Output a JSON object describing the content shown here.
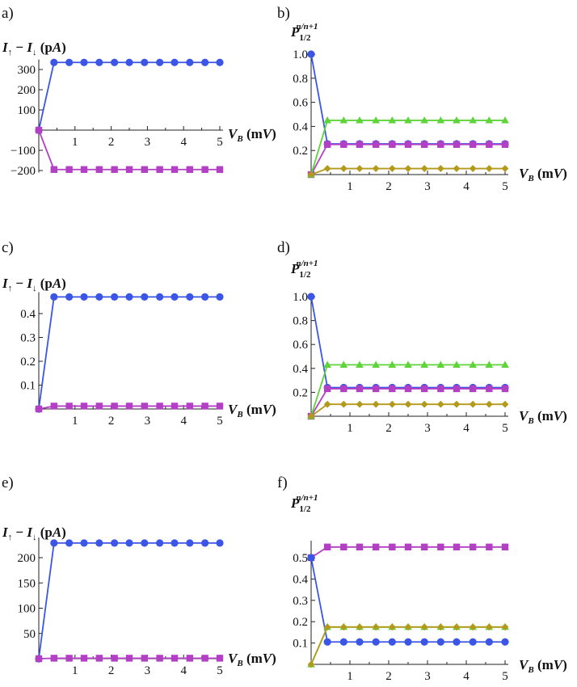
{
  "chart_data": [
    {
      "panel": "a)",
      "type": "line",
      "ylabel": "I↑ − I↓ (pA)",
      "xlabel": "V_B (mV)",
      "xlim": [
        0,
        5
      ],
      "ylim": [
        -210,
        350
      ],
      "xticks": [
        1,
        2,
        3,
        4,
        5
      ],
      "yticks": [
        -200,
        -100,
        100,
        200,
        300
      ],
      "series": [
        {
          "color": "#3b55e6",
          "marker": "circle",
          "x": [
            0,
            0.42,
            0.84,
            1.25,
            1.67,
            2.09,
            2.5,
            2.92,
            3.34,
            3.75,
            4.17,
            4.59,
            5
          ],
          "y": [
            0,
            335,
            335,
            335,
            335,
            335,
            335,
            335,
            335,
            335,
            335,
            335,
            335
          ]
        },
        {
          "color": "#b23fc4",
          "marker": "square",
          "x": [
            0,
            0.42,
            0.84,
            1.25,
            1.67,
            2.09,
            2.5,
            2.92,
            3.34,
            3.75,
            4.17,
            4.59,
            5
          ],
          "y": [
            0,
            -195,
            -195,
            -195,
            -195,
            -195,
            -195,
            -195,
            -195,
            -195,
            -195,
            -195,
            -195
          ]
        }
      ]
    },
    {
      "panel": "b)",
      "type": "line",
      "ylabel": "P_{1/2}^{n/n+1}",
      "xlabel": "V_B (mV)",
      "xlim": [
        0,
        5
      ],
      "ylim": [
        0,
        1.02
      ],
      "xticks": [
        1,
        2,
        3,
        4,
        5
      ],
      "yticks": [
        0.2,
        0.4,
        0.6,
        0.8,
        1.0
      ],
      "ytickfmt": "dec1",
      "series": [
        {
          "color": "#3b55e6",
          "marker": "circle",
          "x": [
            0,
            0.42,
            0.84,
            1.25,
            1.67,
            2.09,
            2.5,
            2.92,
            3.34,
            3.75,
            4.17,
            4.59,
            5
          ],
          "y": [
            1.0,
            0.255,
            0.255,
            0.255,
            0.255,
            0.255,
            0.255,
            0.255,
            0.255,
            0.255,
            0.255,
            0.255,
            0.255
          ]
        },
        {
          "color": "#b23fc4",
          "marker": "square",
          "x": [
            0,
            0.42,
            0.84,
            1.25,
            1.67,
            2.09,
            2.5,
            2.92,
            3.34,
            3.75,
            4.17,
            4.59,
            5
          ],
          "y": [
            0,
            0.25,
            0.25,
            0.25,
            0.25,
            0.25,
            0.25,
            0.25,
            0.25,
            0.25,
            0.25,
            0.25,
            0.25
          ]
        },
        {
          "color": "#5ed43a",
          "marker": "triangle",
          "x": [
            0,
            0.42,
            0.84,
            1.25,
            1.67,
            2.09,
            2.5,
            2.92,
            3.34,
            3.75,
            4.17,
            4.59,
            5
          ],
          "y": [
            0,
            0.45,
            0.45,
            0.45,
            0.45,
            0.45,
            0.45,
            0.45,
            0.45,
            0.45,
            0.45,
            0.45,
            0.45
          ]
        },
        {
          "color": "#b39a1c",
          "marker": "diamond",
          "x": [
            0,
            0.42,
            0.84,
            1.25,
            1.67,
            2.09,
            2.5,
            2.92,
            3.34,
            3.75,
            4.17,
            4.59,
            5
          ],
          "y": [
            0,
            0.05,
            0.05,
            0.05,
            0.05,
            0.05,
            0.05,
            0.05,
            0.05,
            0.05,
            0.05,
            0.05,
            0.05
          ]
        }
      ]
    },
    {
      "panel": "c)",
      "type": "line",
      "ylabel": "I↑ − I↓ (pA)",
      "xlabel": "V_B (mV)",
      "xlim": [
        0,
        5
      ],
      "ylim": [
        0,
        0.49
      ],
      "xticks": [
        1,
        2,
        3,
        4,
        5
      ],
      "yticks": [
        0.1,
        0.2,
        0.3,
        0.4
      ],
      "ytickfmt": "dec1",
      "series": [
        {
          "color": "#3b55e6",
          "marker": "circle",
          "x": [
            0,
            0.42,
            0.84,
            1.25,
            1.67,
            2.09,
            2.5,
            2.92,
            3.34,
            3.75,
            4.17,
            4.59,
            5
          ],
          "y": [
            0,
            0.47,
            0.47,
            0.47,
            0.47,
            0.47,
            0.47,
            0.47,
            0.47,
            0.47,
            0.47,
            0.47,
            0.47
          ]
        },
        {
          "color": "#b23fc4",
          "marker": "square",
          "x": [
            0,
            0.42,
            0.84,
            1.25,
            1.67,
            2.09,
            2.5,
            2.92,
            3.34,
            3.75,
            4.17,
            4.59,
            5
          ],
          "y": [
            0,
            0.012,
            0.012,
            0.012,
            0.012,
            0.012,
            0.012,
            0.012,
            0.012,
            0.012,
            0.012,
            0.012,
            0.012
          ]
        }
      ]
    },
    {
      "panel": "d)",
      "type": "line",
      "ylabel": "P_{1/2}^{n/n+1}",
      "xlabel": "V_B (mV)",
      "xlim": [
        0,
        5
      ],
      "ylim": [
        0,
        1.02
      ],
      "xticks": [
        1,
        2,
        3,
        4,
        5
      ],
      "yticks": [
        0.2,
        0.4,
        0.6,
        0.8,
        1.0
      ],
      "ytickfmt": "dec1",
      "series": [
        {
          "color": "#3b55e6",
          "marker": "circle",
          "x": [
            0,
            0.42,
            0.84,
            1.25,
            1.67,
            2.09,
            2.5,
            2.92,
            3.34,
            3.75,
            4.17,
            4.59,
            5
          ],
          "y": [
            1.0,
            0.24,
            0.24,
            0.24,
            0.24,
            0.24,
            0.24,
            0.24,
            0.24,
            0.24,
            0.24,
            0.24,
            0.24
          ]
        },
        {
          "color": "#b23fc4",
          "marker": "square",
          "x": [
            0,
            0.42,
            0.84,
            1.25,
            1.67,
            2.09,
            2.5,
            2.92,
            3.34,
            3.75,
            4.17,
            4.59,
            5
          ],
          "y": [
            0,
            0.23,
            0.23,
            0.23,
            0.23,
            0.23,
            0.23,
            0.23,
            0.23,
            0.23,
            0.23,
            0.23,
            0.23
          ]
        },
        {
          "color": "#5ed43a",
          "marker": "triangle",
          "x": [
            0,
            0.42,
            0.84,
            1.25,
            1.67,
            2.09,
            2.5,
            2.92,
            3.34,
            3.75,
            4.17,
            4.59,
            5
          ],
          "y": [
            0,
            0.43,
            0.43,
            0.43,
            0.43,
            0.43,
            0.43,
            0.43,
            0.43,
            0.43,
            0.43,
            0.43,
            0.43
          ]
        },
        {
          "color": "#b39a1c",
          "marker": "diamond",
          "x": [
            0,
            0.42,
            0.84,
            1.25,
            1.67,
            2.09,
            2.5,
            2.92,
            3.34,
            3.75,
            4.17,
            4.59,
            5
          ],
          "y": [
            0,
            0.1,
            0.1,
            0.1,
            0.1,
            0.1,
            0.1,
            0.1,
            0.1,
            0.1,
            0.1,
            0.1,
            0.1
          ]
        }
      ]
    },
    {
      "panel": "e)",
      "type": "line",
      "ylabel": "I↑ − I↓ (pA)",
      "xlabel": "V_B (mV)",
      "xlim": [
        0,
        5
      ],
      "ylim": [
        0,
        240
      ],
      "xticks": [
        1,
        2,
        3,
        4,
        5
      ],
      "yticks": [
        50,
        100,
        150,
        200
      ],
      "series": [
        {
          "color": "#3b55e6",
          "marker": "circle",
          "x": [
            0,
            0.42,
            0.84,
            1.25,
            1.67,
            2.09,
            2.5,
            2.92,
            3.34,
            3.75,
            4.17,
            4.59,
            5
          ],
          "y": [
            0,
            229,
            229,
            229,
            229,
            229,
            229,
            229,
            229,
            229,
            229,
            229,
            229
          ]
        },
        {
          "color": "#b23fc4",
          "marker": "square",
          "x": [
            0,
            0.42,
            0.84,
            1.25,
            1.67,
            2.09,
            2.5,
            2.92,
            3.34,
            3.75,
            4.17,
            4.59,
            5
          ],
          "y": [
            0,
            1,
            1,
            1,
            1,
            1,
            1,
            1,
            1,
            1,
            1,
            1,
            1
          ]
        }
      ]
    },
    {
      "panel": "f)",
      "type": "line",
      "ylabel": "P_{1/2}^{n/n+1}",
      "xlabel": "V_B (mV)",
      "xlim": [
        0,
        5
      ],
      "ylim": [
        0,
        0.58
      ],
      "xticks": [
        1,
        2,
        3,
        4,
        5
      ],
      "yticks": [
        0.1,
        0.2,
        0.3,
        0.4,
        0.5
      ],
      "ytickfmt": "dec1",
      "series": [
        {
          "color": "#b23fc4",
          "marker": "square",
          "x": [
            0,
            0.42,
            0.84,
            1.25,
            1.67,
            2.09,
            2.5,
            2.92,
            3.34,
            3.75,
            4.17,
            4.59,
            5
          ],
          "y": [
            0.5,
            0.55,
            0.55,
            0.55,
            0.55,
            0.55,
            0.55,
            0.55,
            0.55,
            0.55,
            0.55,
            0.55,
            0.55
          ]
        },
        {
          "color": "#3b55e6",
          "marker": "circle",
          "x": [
            0,
            0.42,
            0.84,
            1.25,
            1.67,
            2.09,
            2.5,
            2.92,
            3.34,
            3.75,
            4.17,
            4.59,
            5
          ],
          "y": [
            0.5,
            0.105,
            0.105,
            0.105,
            0.105,
            0.105,
            0.105,
            0.105,
            0.105,
            0.105,
            0.105,
            0.105,
            0.105
          ]
        },
        {
          "color": "#5ed43a",
          "marker": "triangle",
          "x": [
            0,
            0.42,
            0.84,
            1.25,
            1.67,
            2.09,
            2.5,
            2.92,
            3.34,
            3.75,
            4.17,
            4.59,
            5
          ],
          "y": [
            0,
            0.175,
            0.175,
            0.175,
            0.175,
            0.175,
            0.175,
            0.175,
            0.175,
            0.175,
            0.175,
            0.175,
            0.175
          ]
        },
        {
          "color": "#b39a1c",
          "marker": "diamond",
          "x": [
            0,
            0.42,
            0.84,
            1.25,
            1.67,
            2.09,
            2.5,
            2.92,
            3.34,
            3.75,
            4.17,
            4.59,
            5
          ],
          "y": [
            0,
            0.175,
            0.175,
            0.175,
            0.175,
            0.175,
            0.175,
            0.175,
            0.175,
            0.175,
            0.175,
            0.175,
            0.175
          ]
        }
      ]
    }
  ]
}
